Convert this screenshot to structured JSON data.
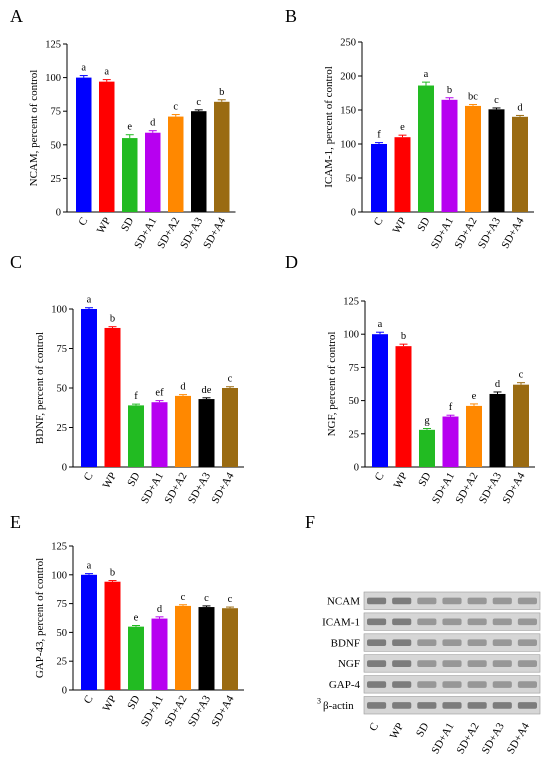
{
  "chart_data": [
    {
      "panel": "A",
      "type": "bar",
      "ylabel": "NCAM, percent of control",
      "ylim": [
        0,
        125
      ],
      "yticks": [
        0,
        25,
        50,
        75,
        100,
        125
      ],
      "categories": [
        "C",
        "WP",
        "SD",
        "SD+A1",
        "SD+A2",
        "SD+A3",
        "SD+A4"
      ],
      "values": [
        100,
        97,
        55,
        59,
        71,
        75,
        82
      ],
      "errors": [
        1.5,
        1.5,
        2.5,
        1.5,
        1.5,
        1,
        1.5
      ],
      "letters": [
        "a",
        "a",
        "e",
        "d",
        "c",
        "c",
        "b"
      ]
    },
    {
      "panel": "B",
      "type": "bar",
      "ylabel": "ICAM-1, percent of control",
      "ylim": [
        0,
        250
      ],
      "yticks": [
        0,
        50,
        100,
        150,
        200,
        250
      ],
      "categories": [
        "C",
        "WP",
        "SD",
        "SD+A1",
        "SD+A2",
        "SD+A3",
        "SD+A4"
      ],
      "values": [
        100,
        110,
        186,
        165,
        156,
        151,
        140
      ],
      "errors": [
        2,
        3,
        5,
        3,
        2,
        2,
        2
      ],
      "letters": [
        "f",
        "e",
        "a",
        "b",
        "bc",
        "c",
        "d"
      ]
    },
    {
      "panel": "C",
      "type": "bar",
      "ylabel": "BDNF, percent of control",
      "ylim": [
        0,
        100
      ],
      "yticks": [
        0,
        25,
        50,
        75,
        100
      ],
      "categories": [
        "C",
        "WP",
        "SD",
        "SD+A1",
        "SD+A2",
        "SD+A3",
        "SD+A4"
      ],
      "values": [
        100,
        88,
        39,
        41,
        45,
        43,
        50
      ],
      "errors": [
        0.8,
        0.8,
        0.8,
        1,
        0.8,
        0.8,
        0.8
      ],
      "letters": [
        "a",
        "b",
        "f",
        "ef",
        "d",
        "de",
        "c"
      ]
    },
    {
      "panel": "D",
      "type": "bar",
      "ylabel": "NGF, percent of control",
      "ylim": [
        0,
        125
      ],
      "yticks": [
        0,
        25,
        50,
        75,
        100,
        125
      ],
      "categories": [
        "C",
        "WP",
        "SD",
        "SD+A1",
        "SD+A2",
        "SD+A3",
        "SD+A4"
      ],
      "values": [
        100,
        91,
        28,
        38,
        46,
        55,
        62
      ],
      "errors": [
        1.5,
        1.5,
        1,
        1,
        1.5,
        1.5,
        1.5
      ],
      "letters": [
        "a",
        "b",
        "g",
        "f",
        "e",
        "d",
        "c"
      ]
    },
    {
      "panel": "E",
      "type": "bar",
      "ylabel": "GAP-43, percent of control",
      "ylim": [
        0,
        125
      ],
      "yticks": [
        0,
        25,
        50,
        75,
        100,
        125
      ],
      "categories": [
        "C",
        "WP",
        "SD",
        "SD+A1",
        "SD+A2",
        "SD+A3",
        "SD+A4"
      ],
      "values": [
        100,
        94,
        55,
        62,
        73,
        72,
        71
      ],
      "errors": [
        1,
        1,
        1,
        1.5,
        1,
        1,
        1
      ],
      "letters": [
        "a",
        "b",
        "e",
        "d",
        "c",
        "c",
        "c"
      ]
    }
  ],
  "colors": [
    "#0000ff",
    "#ff0000",
    "#22bb22",
    "#b700f0",
    "#ff8800",
    "#000000",
    "#9a6b12"
  ],
  "blot": {
    "panel": "F",
    "rows": [
      "NCAM",
      "ICAM-1",
      "BDNF",
      "NGF",
      "GAP-4",
      "β-actin"
    ],
    "prefix": "3",
    "lanes": [
      "C",
      "WP",
      "SD",
      "SD+A1",
      "SD+A2",
      "SD+A3",
      "SD+A4"
    ]
  }
}
